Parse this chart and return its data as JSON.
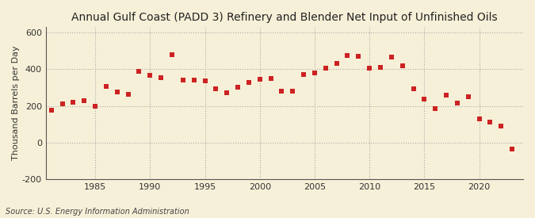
{
  "title": "Annual Gulf Coast (PADD 3) Refinery and Blender Net Input of Unfinished Oils",
  "ylabel": "Thousand Barrels per Day",
  "source": "Source: U.S. Energy Information Administration",
  "background_color": "#f7f0d8",
  "marker_color": "#cc2222",
  "years": [
    1981,
    1982,
    1983,
    1984,
    1985,
    1986,
    1987,
    1988,
    1989,
    1990,
    1991,
    1992,
    1993,
    1994,
    1995,
    1996,
    1997,
    1998,
    1999,
    2000,
    2001,
    2002,
    2003,
    2004,
    2005,
    2006,
    2007,
    2008,
    2009,
    2010,
    2011,
    2012,
    2013,
    2014,
    2015,
    2016,
    2017,
    2018,
    2019,
    2020,
    2021,
    2022,
    2023
  ],
  "values": [
    175,
    213,
    218,
    230,
    200,
    305,
    275,
    265,
    390,
    365,
    355,
    480,
    340,
    340,
    335,
    295,
    270,
    300,
    330,
    345,
    350,
    280,
    280,
    370,
    380,
    405,
    430,
    475,
    470,
    405,
    410,
    465,
    420,
    295,
    235,
    185,
    260,
    215,
    248,
    130,
    110,
    90,
    -35
  ],
  "ylim": [
    -200,
    630
  ],
  "yticks": [
    -200,
    0,
    200,
    400,
    600
  ],
  "ytick_labels": [
    "-200",
    "0",
    "200",
    "400",
    "600"
  ],
  "xlim": [
    1980.5,
    2024
  ],
  "xticks": [
    1985,
    1990,
    1995,
    2000,
    2005,
    2010,
    2015,
    2020
  ],
  "grid_color": "#aaaaaa",
  "title_fontsize": 10,
  "label_fontsize": 8,
  "source_fontsize": 7,
  "marker_size": 4.5
}
